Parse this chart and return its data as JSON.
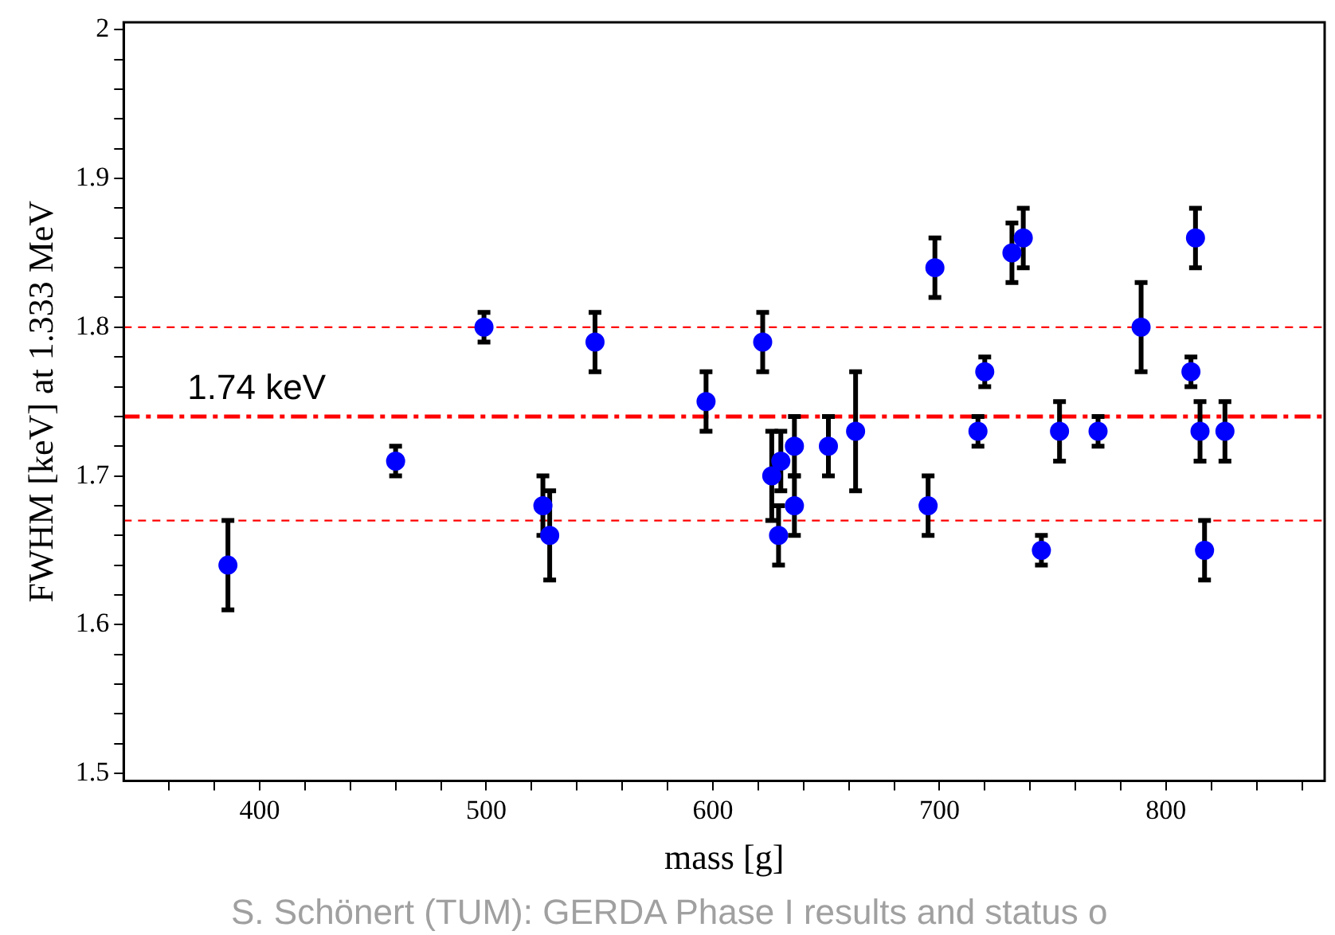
{
  "chart_data": {
    "type": "scatter",
    "xlabel": "mass [g]",
    "ylabel": "FWHM [keV] at 1.333 MeV",
    "x": [
      386,
      460,
      499,
      548,
      525,
      528,
      597,
      622,
      626,
      629,
      630,
      636,
      636,
      651,
      663,
      695,
      698,
      717,
      720,
      732,
      737,
      745,
      753,
      770,
      789,
      811,
      813,
      815,
      817,
      826
    ],
    "series": [
      {
        "color": "#0000ff",
        "values": [
          1.64,
          1.71,
          1.8,
          1.79,
          1.68,
          1.66,
          1.75,
          1.79,
          1.7,
          1.66,
          1.71,
          1.72,
          1.68,
          1.72,
          1.73,
          1.68,
          1.84,
          1.73,
          1.77,
          1.85,
          1.86,
          1.65,
          1.73,
          1.73,
          1.8,
          1.77,
          1.86,
          1.73,
          1.65,
          1.73
        ],
        "errors": [
          0.03,
          0.01,
          0.01,
          0.02,
          0.02,
          0.03,
          0.02,
          0.02,
          0.03,
          0.02,
          0.02,
          0.02,
          0.02,
          0.02,
          0.04,
          0.02,
          0.02,
          0.01,
          0.01,
          0.02,
          0.02,
          0.01,
          0.02,
          0.01,
          0.03,
          0.01,
          0.02,
          0.02,
          0.02,
          0.02
        ]
      }
    ],
    "xlim": [
      340,
      870
    ],
    "ylim": [
      1.495,
      2.005
    ],
    "xticks": [
      {
        "value": 360,
        "label": null
      },
      {
        "value": 380,
        "label": null
      },
      400,
      {
        "value": 420,
        "label": null
      },
      {
        "value": 440,
        "label": null
      },
      {
        "value": 460,
        "label": null
      },
      {
        "value": 480,
        "label": null
      },
      500,
      {
        "value": 520,
        "label": null
      },
      {
        "value": 540,
        "label": null
      },
      {
        "value": 560,
        "label": null
      },
      {
        "value": 580,
        "label": null
      },
      600,
      {
        "value": 620,
        "label": null
      },
      {
        "value": 640,
        "label": null
      },
      {
        "value": 660,
        "label": null
      },
      {
        "value": 680,
        "label": null
      },
      700,
      {
        "value": 720,
        "label": null
      },
      {
        "value": 740,
        "label": null
      },
      {
        "value": 760,
        "label": null
      },
      {
        "value": 780,
        "label": null
      },
      800,
      {
        "value": 820,
        "label": null
      },
      {
        "value": 840,
        "label": null
      },
      {
        "value": 860,
        "label": null
      }
    ],
    "yticks": [
      1.5,
      {
        "value": 1.52,
        "label": null
      },
      {
        "value": 1.54,
        "label": null
      },
      {
        "value": 1.56,
        "label": null
      },
      {
        "value": 1.58,
        "label": null
      },
      1.6,
      {
        "value": 1.62,
        "label": null
      },
      {
        "value": 1.64,
        "label": null
      },
      {
        "value": 1.66,
        "label": null
      },
      {
        "value": 1.68,
        "label": null
      },
      1.7,
      {
        "value": 1.72,
        "label": null
      },
      {
        "value": 1.74,
        "label": null
      },
      {
        "value": 1.76,
        "label": null
      },
      {
        "value": 1.78,
        "label": null
      },
      1.8,
      {
        "value": 1.82,
        "label": null
      },
      {
        "value": 1.84,
        "label": null
      },
      {
        "value": 1.86,
        "label": null
      },
      {
        "value": 1.88,
        "label": null
      },
      1.9,
      {
        "value": 1.92,
        "label": null
      },
      {
        "value": 1.94,
        "label": null
      },
      {
        "value": 1.96,
        "label": null
      },
      {
        "value": 1.98,
        "label": null
      },
      2
    ],
    "ref_lines": [
      {
        "axis": "y",
        "value": 1.8,
        "label": null,
        "color": "#ff0000",
        "line_style": "dashed"
      },
      {
        "axis": "y",
        "value": 1.74,
        "label": "1.74 keV",
        "color": "#ff0000",
        "line_style": "dashed"
      },
      {
        "axis": "y",
        "value": 1.67,
        "label": null,
        "color": "#ff0000",
        "line_style": "dashed"
      }
    ],
    "annotations": [
      "S. Schönert (TUM): GERDA Phase I results and status o"
    ],
    "marker": "circle",
    "grid": false,
    "legend": false
  }
}
